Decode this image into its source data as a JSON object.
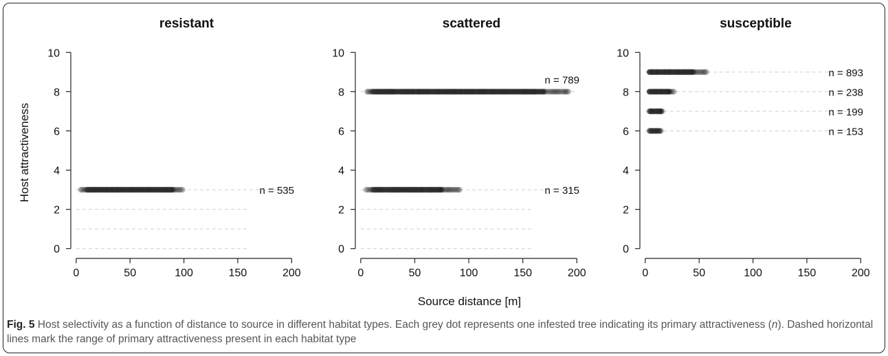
{
  "figure": {
    "ylabel": "Host attractiveness",
    "xlabel": "Source distance [m]"
  },
  "chart_data": [
    {
      "type": "scatter",
      "title": "resistant",
      "xlim": [
        -5,
        210
      ],
      "ylim": [
        -0.5,
        10.5
      ],
      "xticks": [
        "0",
        "50",
        "100",
        "150",
        "200"
      ],
      "yticks": [
        "0",
        "2",
        "4",
        "6",
        "8",
        "10"
      ],
      "dashed_levels": [
        0,
        1,
        2,
        3
      ],
      "series": [
        {
          "y": 3,
          "x_range": [
            4,
            100
          ],
          "dense_range": [
            10,
            90
          ],
          "label": "n = 535"
        }
      ]
    },
    {
      "type": "scatter",
      "title": "scattered",
      "xlim": [
        -5,
        210
      ],
      "ylim": [
        -0.5,
        10.5
      ],
      "xticks": [
        "0",
        "50",
        "100",
        "150",
        "200"
      ],
      "yticks": [
        "0",
        "2",
        "4",
        "6",
        "8",
        "10"
      ],
      "dashed_levels": [
        0,
        1,
        2,
        3,
        8
      ],
      "series": [
        {
          "y": 8,
          "x_range": [
            6,
            192
          ],
          "dense_range": [
            10,
            170
          ],
          "label": "n = 789"
        },
        {
          "y": 3,
          "x_range": [
            5,
            92
          ],
          "dense_range": [
            10,
            75
          ],
          "label": "n = 315"
        }
      ]
    },
    {
      "type": "scatter",
      "title": "susceptible",
      "xlim": [
        -5,
        210
      ],
      "ylim": [
        -0.5,
        10.5
      ],
      "xticks": [
        "0",
        "50",
        "100",
        "150",
        "200"
      ],
      "yticks": [
        "0",
        "2",
        "4",
        "6",
        "8",
        "10"
      ],
      "dashed_levels": [
        6,
        7,
        8,
        9
      ],
      "series": [
        {
          "y": 9,
          "x_range": [
            4,
            58
          ],
          "dense_range": [
            4,
            46
          ],
          "label": "n = 893"
        },
        {
          "y": 8,
          "x_range": [
            4,
            27
          ],
          "dense_range": [
            4,
            22
          ],
          "label": "n = 238"
        },
        {
          "y": 7,
          "x_range": [
            4,
            16
          ],
          "dense_range": [
            4,
            15
          ],
          "label": "n = 199"
        },
        {
          "y": 6,
          "x_range": [
            4,
            15
          ],
          "dense_range": [
            4,
            14
          ],
          "label": "n = 153"
        }
      ]
    }
  ],
  "caption": {
    "label": "Fig. 5",
    "text_1": " Host selectivity as a function of distance to source in different habitat types. Each grey dot represents one infested tree indicating its primary attractiveness (",
    "symbol": "n",
    "text_2": "). Dashed horizontal lines mark the range of primary attractiveness present in each habitat type"
  }
}
